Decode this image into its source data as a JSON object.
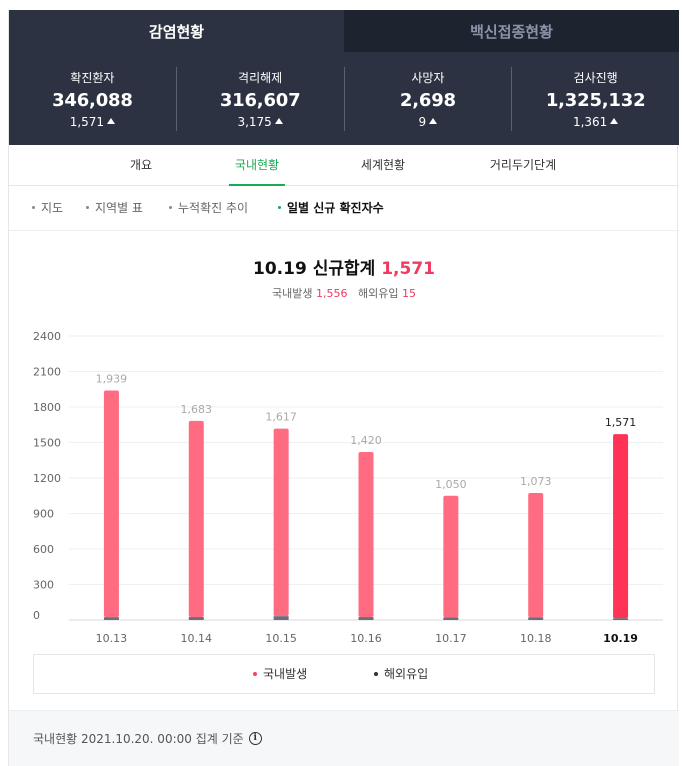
{
  "top_tabs": [
    {
      "label": "감염현황",
      "active": true
    },
    {
      "label": "백신접종현황",
      "active": false
    }
  ],
  "stats": [
    {
      "label": "확진환자",
      "value": "346,088",
      "delta": "1,571"
    },
    {
      "label": "격리해제",
      "value": "316,607",
      "delta": "3,175"
    },
    {
      "label": "사망자",
      "value": "2,698",
      "delta": "9"
    },
    {
      "label": "검사진행",
      "value": "1,325,132",
      "delta": "1,361"
    }
  ],
  "sub_tabs": [
    {
      "label": "개요",
      "active": false
    },
    {
      "label": "국내현황",
      "active": true
    },
    {
      "label": "세계현황",
      "active": false
    },
    {
      "label": "거리두기단계",
      "active": false
    }
  ],
  "chips": [
    {
      "label": "지도",
      "active": false
    },
    {
      "label": "지역별 표",
      "active": false
    },
    {
      "label": "누적확진 추이",
      "active": false
    },
    {
      "label": "일별 신규 확진자수",
      "active": true
    }
  ],
  "summary": {
    "date": "10.19",
    "title_text": "신규합계",
    "total": "1,571",
    "domestic_label": "국내발생",
    "domestic_value": "1,556",
    "overseas_label": "해외유입",
    "overseas_value": "15"
  },
  "chart_data": {
    "type": "bar",
    "categories": [
      "10.13",
      "10.14",
      "10.15",
      "10.16",
      "10.17",
      "10.18",
      "10.19"
    ],
    "series": [
      {
        "name": "국내발생",
        "values": [
          1915,
          1658,
          1585,
          1395,
          1028,
          1050,
          1556
        ]
      },
      {
        "name": "해외유입",
        "values": [
          24,
          25,
          32,
          25,
          22,
          23,
          15
        ]
      }
    ],
    "totals": [
      "1,939",
      "1,683",
      "1,617",
      "1,420",
      "1,050",
      "1,073",
      "1,571"
    ],
    "totals_numeric": [
      1939,
      1683,
      1617,
      1420,
      1050,
      1073,
      1571
    ],
    "yticks": [
      "0",
      "300",
      "600",
      "900",
      "1200",
      "1500",
      "1800",
      "2100",
      "2400"
    ],
    "ylim": [
      0,
      2400
    ],
    "highlight_index": 6,
    "colors": {
      "domestic": "#ff6b81",
      "domestic_highlight": "#ff3355",
      "overseas": "#6b6f7a"
    }
  },
  "legend": [
    {
      "label": "국내발생",
      "color": "#ff4060"
    },
    {
      "label": "해외유입",
      "color": "#333333"
    }
  ],
  "footer": {
    "text": "국내현황 2021.10.20. 00:00 집계 기준",
    "info_icon": "info-icon"
  }
}
